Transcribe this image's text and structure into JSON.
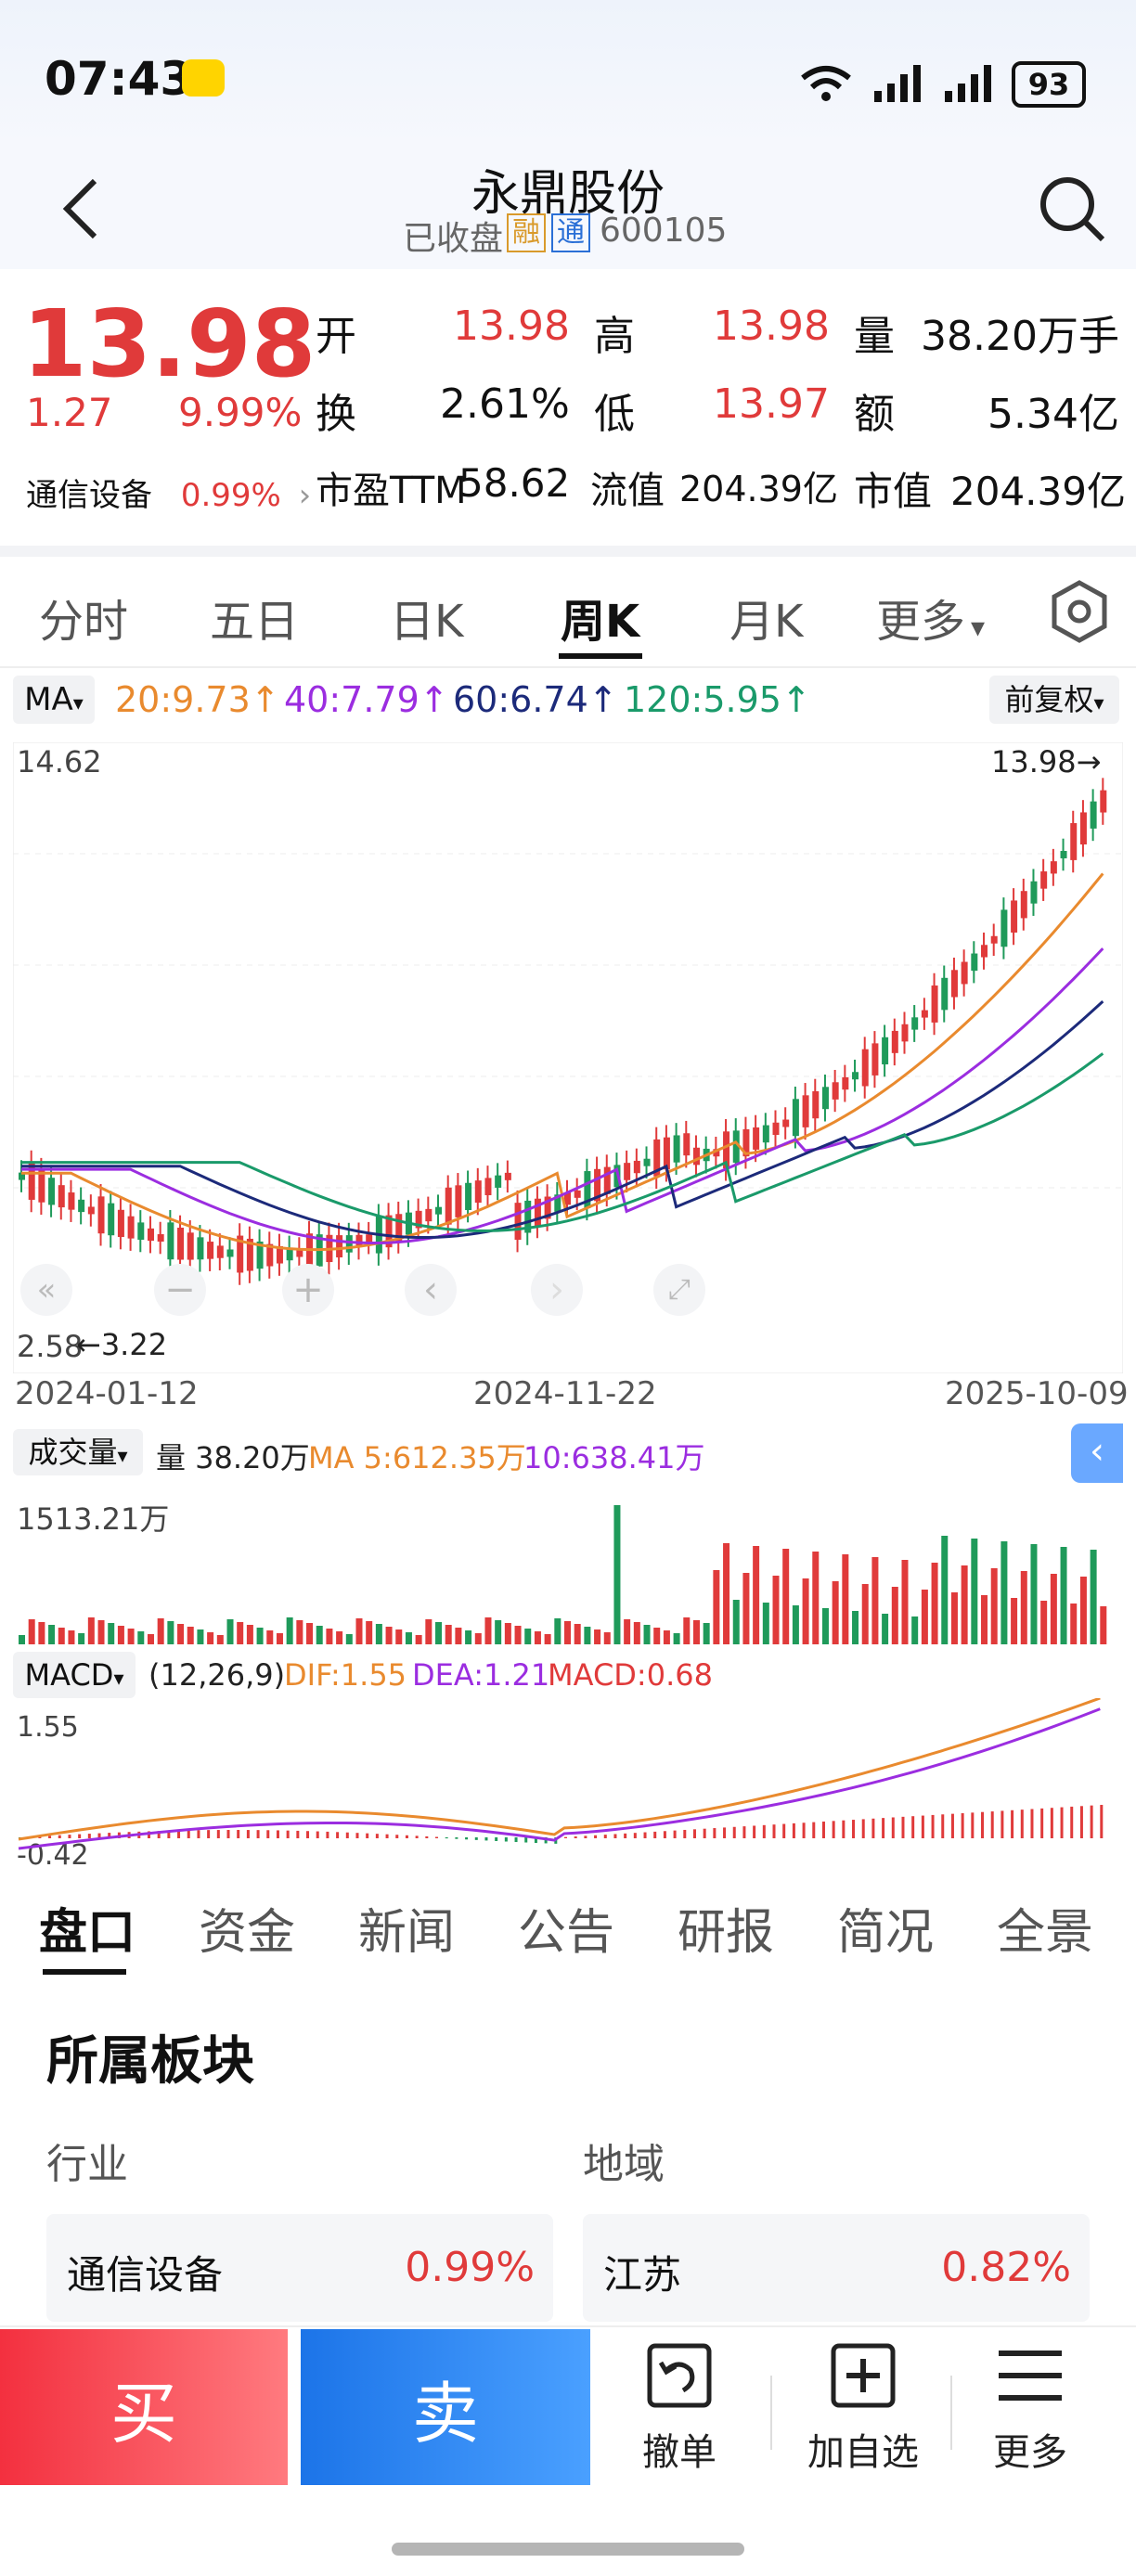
{
  "status": {
    "time": "07:43",
    "battery": "93"
  },
  "header": {
    "title": "永鼎股份",
    "sub_status": "已收盘",
    "badge1": "融",
    "badge2": "通",
    "code": "600105"
  },
  "quote": {
    "price": "13.98",
    "change": "1.27",
    "change_pct": "9.99%",
    "sector_name": "通信设备",
    "sector_pct": "0.99%",
    "fields": [
      {
        "label": "开",
        "value": "13.98"
      },
      {
        "label": "高",
        "value": "13.98"
      },
      {
        "label": "量",
        "value": "38.20万手"
      },
      {
        "label": "换",
        "value": "2.61%"
      },
      {
        "label": "低",
        "value": "13.97"
      },
      {
        "label": "额",
        "value": "5.34亿"
      },
      {
        "label": "市盈TTM",
        "value": "58.62"
      },
      {
        "label": "流值",
        "value": "204.39亿"
      },
      {
        "label": "市值",
        "value": "204.39亿"
      }
    ]
  },
  "tabs": [
    "分时",
    "五日",
    "日K",
    "周K",
    "月K",
    "更多"
  ],
  "ma": {
    "label": "MA",
    "m20": "20:9.73↑",
    "m40": "40:7.79↑",
    "m60": "60:6.74↑",
    "m120": "120:5.95↑",
    "adj": "前复权",
    "colors": {
      "m20": "#e98a2e",
      "m40": "#9b2de0",
      "m60": "#1c2a7a",
      "m120": "#1a9a6a"
    }
  },
  "kchart": {
    "ymax": "14.62",
    "ymin": "2.58",
    "last": "13.98→",
    "low_note": "←3.22",
    "dates": [
      "2024-01-12",
      "2024-11-22",
      "2025-10-09"
    ]
  },
  "volume": {
    "label": "成交量",
    "vol": "量 38.20万",
    "ma5": "MA 5:612.35万",
    "ma10": "10:638.41万",
    "max": "1513.21万"
  },
  "macd": {
    "label": "MACD",
    "params": "(12,26,9)",
    "dif": "DIF:1.55",
    "dea": "DEA:1.21",
    "macd": "MACD:0.68",
    "top": "1.55",
    "bottom": "-0.42"
  },
  "bottom_tabs": [
    "盘口",
    "资金",
    "新闻",
    "公告",
    "研报",
    "简况",
    "全景"
  ],
  "section": {
    "title": "所属板块",
    "industry_label": "行业",
    "region_label": "地域",
    "industry_name": "通信设备",
    "industry_pct": "0.99%",
    "region_name": "江苏",
    "region_pct": "0.82%"
  },
  "actions": {
    "buy": "买",
    "sell": "卖",
    "cancel": "撤单",
    "watch": "加自选",
    "more": "更多"
  }
}
